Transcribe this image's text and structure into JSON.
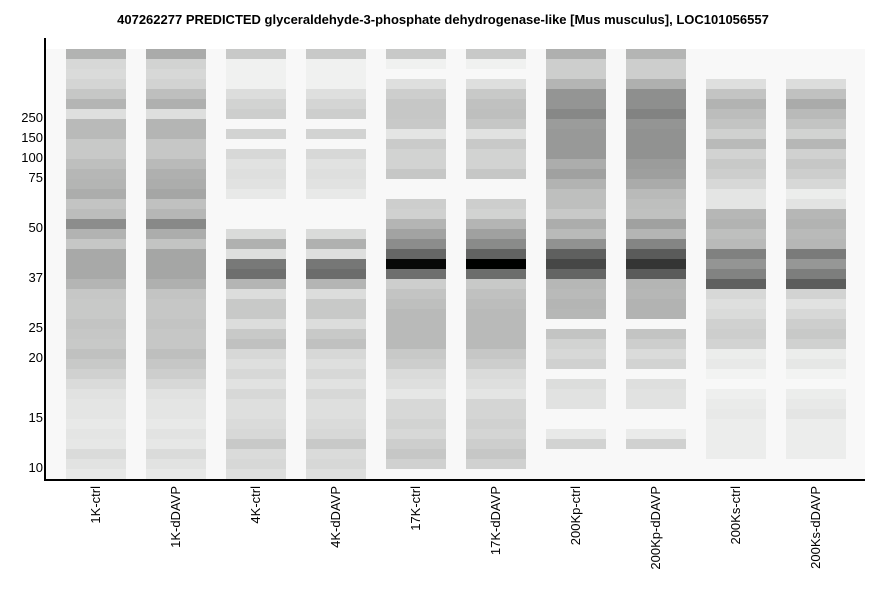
{
  "chart_data": {
    "type": "heatmap",
    "title": "407262277 PREDICTED  glyceraldehyde-3-phosphate dehydrogenase-like [Mus musculus], LOC101056557",
    "xlabel": "",
    "ylabel": "",
    "y_ticks": [
      "250",
      "150",
      "100",
      "75",
      "50",
      "37",
      "25",
      "20",
      "15",
      "10"
    ],
    "y_tick_slots": [
      6.8,
      8.8,
      10.8,
      12.8,
      17.8,
      22.8,
      27.8,
      30.8,
      36.8,
      41.8
    ],
    "value_meaning": "gray level per band slot (0 = black/most abundant, 255 = white); null = no band",
    "lanes": [
      {
        "name": "1K-ctrl",
        "bands": [
          178,
          215,
          218,
          212,
          198,
          180,
          222,
          185,
          185,
          200,
          200,
          190,
          182,
          180,
          172,
          195,
          188,
          140,
          178,
          198,
          168,
          168,
          168,
          180,
          198,
          200,
          200,
          195,
          198,
          200,
          192,
          200,
          208,
          218,
          225,
          228,
          228,
          232,
          228,
          230,
          218,
          226,
          232
        ]
      },
      {
        "name": "1K-dDAVP",
        "bands": [
          170,
          210,
          215,
          210,
          190,
          175,
          222,
          180,
          180,
          198,
          198,
          185,
          175,
          172,
          165,
          192,
          182,
          136,
          172,
          195,
          165,
          165,
          165,
          175,
          195,
          198,
          198,
          195,
          198,
          198,
          190,
          198,
          205,
          215,
          225,
          228,
          228,
          232,
          226,
          230,
          218,
          226,
          232
        ]
      },
      {
        "name": "4K-ctrl",
        "bands": [
          200,
          240,
          240,
          240,
          220,
          210,
          205,
          null,
          210,
          null,
          215,
          225,
          222,
          225,
          232,
          null,
          null,
          null,
          218,
          176,
          222,
          120,
          110,
          180,
          220,
          200,
          200,
          220,
          200,
          192,
          215,
          222,
          215,
          225,
          215,
          222,
          222,
          218,
          215,
          200,
          218,
          215,
          222
        ]
      },
      {
        "name": "4K-dDAVP",
        "bands": [
          200,
          240,
          240,
          240,
          222,
          212,
          205,
          null,
          210,
          null,
          215,
          225,
          222,
          225,
          232,
          null,
          null,
          null,
          218,
          176,
          222,
          118,
          108,
          180,
          220,
          200,
          200,
          220,
          200,
          192,
          215,
          222,
          215,
          225,
          215,
          222,
          222,
          218,
          215,
          200,
          218,
          215,
          222
        ]
      },
      {
        "name": "17K-ctrl",
        "bands": [
          200,
          240,
          null,
          222,
          205,
          198,
          198,
          200,
          228,
          202,
          210,
          210,
          198,
          null,
          null,
          205,
          208,
          180,
          162,
          140,
          102,
          8,
          110,
          205,
          195,
          190,
          185,
          185,
          185,
          185,
          200,
          205,
          218,
          222,
          230,
          215,
          215,
          210,
          215,
          205,
          198,
          208
        ]
      },
      {
        "name": "17K-dDAVP",
        "bands": [
          200,
          240,
          null,
          222,
          200,
          192,
          190,
          198,
          225,
          200,
          210,
          210,
          198,
          null,
          null,
          205,
          210,
          180,
          160,
          138,
          98,
          0,
          108,
          200,
          192,
          188,
          185,
          185,
          185,
          185,
          198,
          205,
          218,
          222,
          228,
          212,
          212,
          208,
          212,
          205,
          198,
          208
        ]
      },
      {
        "name": "200Kp-ctrl",
        "bands": [
          175,
          205,
          205,
          180,
          148,
          148,
          135,
          155,
          152,
          152,
          152,
          172,
          160,
          178,
          190,
          190,
          200,
          172,
          185,
          145,
          95,
          70,
          100,
          182,
          185,
          180,
          182,
          null,
          195,
          210,
          215,
          208,
          null,
          220,
          225,
          225,
          null,
          null,
          232,
          210
        ]
      },
      {
        "name": "200Kp-dDAVP",
        "bands": [
          180,
          205,
          205,
          175,
          142,
          142,
          130,
          148,
          145,
          145,
          145,
          155,
          158,
          170,
          185,
          190,
          192,
          160,
          180,
          132,
          90,
          52,
          90,
          180,
          182,
          178,
          178,
          null,
          195,
          205,
          218,
          210,
          null,
          222,
          225,
          225,
          null,
          null,
          234,
          208
        ]
      },
      {
        "name": "200Ks-ctrl",
        "bands": [
          null,
          null,
          null,
          222,
          195,
          178,
          188,
          195,
          208,
          185,
          210,
          200,
          205,
          215,
          228,
          228,
          182,
          178,
          190,
          185,
          128,
          148,
          130,
          95,
          215,
          222,
          218,
          208,
          205,
          210,
          236,
          232,
          242,
          null,
          238,
          234,
          232,
          236,
          236,
          236,
          236
        ]
      },
      {
        "name": "200Ks-dDAVP",
        "bands": [
          null,
          null,
          null,
          220,
          192,
          170,
          185,
          195,
          210,
          182,
          208,
          198,
          205,
          215,
          236,
          226,
          182,
          178,
          185,
          182,
          122,
          150,
          125,
          92,
          210,
          225,
          215,
          205,
          200,
          208,
          236,
          230,
          242,
          null,
          236,
          232,
          228,
          236,
          236,
          236,
          236
        ]
      }
    ],
    "colors": {
      "background": "#f8f8f8",
      "axis": "#000000"
    }
  }
}
